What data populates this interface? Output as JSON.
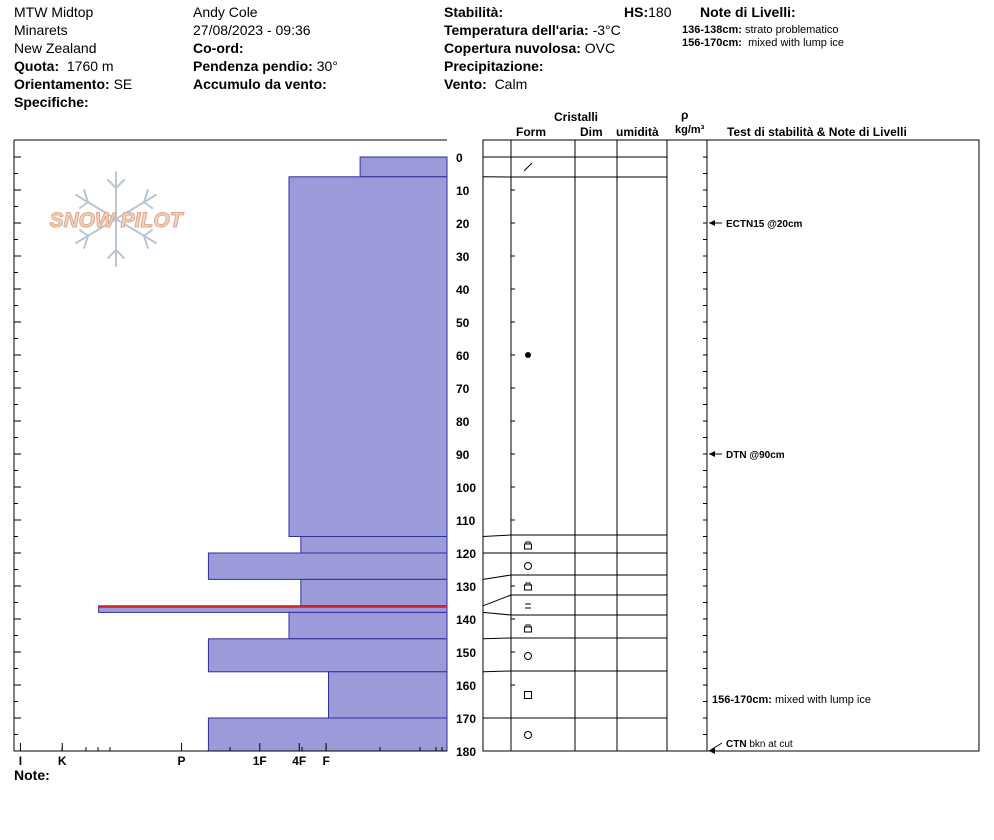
{
  "header": {
    "location": "MTW Midtop",
    "range": "Minarets",
    "country": "New Zealand",
    "elevation_label": "Quota:",
    "elevation_value": "1760 m",
    "aspect_label": "Orientamento:",
    "aspect_value": "SE",
    "specifics_label": "Specifiche:",
    "observer": "Andy Cole",
    "datetime": "27/08/2023 - 09:36",
    "coord_label": "Co-ord:",
    "slope_label": "Pendenza pendio:",
    "slope_value": "30°",
    "wind_loading_label": "Accumulo da vento:",
    "stability_label": "Stabilità:",
    "hs_label": "HS:",
    "hs_value": "180",
    "air_temp_label": "Temperatura dell'aria:",
    "air_temp_value": "-3°C",
    "sky_label": "Copertura nuvolosa:",
    "sky_value": "OVC",
    "precip_label": "Precipitazione:",
    "wind_label": "Vento:",
    "wind_value": "Calm",
    "layer_notes_title": "Note di Livelli:",
    "layer_notes": [
      {
        "range": "136-138cm:",
        "text": "strato problematico"
      },
      {
        "range": "156-170cm:",
        "text": "mixed with lump ice"
      }
    ]
  },
  "logo_text": "SNOW PILOT",
  "notes_label": "Note:",
  "columns": {
    "crystals": "Cristalli",
    "form": "Form",
    "size": "Dim",
    "moisture": "umidità",
    "rho": "ρ",
    "density_unit": "kg/m³",
    "tests": "Test di stabilità & Note di Livelli"
  },
  "chart_data": {
    "type": "snow-profile-hardness",
    "depth_axis": {
      "min": 0,
      "max": 180,
      "ticks": [
        0,
        10,
        20,
        30,
        40,
        50,
        60,
        70,
        80,
        90,
        100,
        110,
        120,
        130,
        140,
        150,
        160,
        170,
        180
      ],
      "unit": "cm"
    },
    "hardness_axis": {
      "labels": [
        "I",
        "K",
        "P",
        "1F",
        "4F",
        "F"
      ],
      "scale_values": [
        5.4,
        4.87,
        3.36,
        2.37,
        1.87,
        1.53
      ]
    },
    "colors": {
      "layer_fill": "#9b9bd9",
      "layer_stroke": "#2e2e9a",
      "problem_layer_line": "#cc2222"
    },
    "layers": [
      {
        "top": 0,
        "bottom": 6,
        "hardness": 1.1,
        "form": "slash"
      },
      {
        "top": 6,
        "bottom": 115,
        "hardness": 2.0,
        "form": "dot"
      },
      {
        "top": 115,
        "bottom": 120,
        "hardness": 1.85,
        "form": "lock"
      },
      {
        "top": 120,
        "bottom": 128,
        "hardness": 3.02,
        "form": "circle"
      },
      {
        "top": 128,
        "bottom": 136,
        "hardness": 1.85,
        "form": "lock"
      },
      {
        "top": 136,
        "bottom": 138,
        "hardness": 4.41,
        "form": "equals",
        "problem": true
      },
      {
        "top": 138,
        "bottom": 146,
        "hardness": 2.0,
        "form": "lock"
      },
      {
        "top": 146,
        "bottom": 156,
        "hardness": 3.02,
        "form": "circle"
      },
      {
        "top": 156,
        "bottom": 170,
        "hardness": 1.5,
        "form": "square"
      },
      {
        "top": 170,
        "bottom": 180,
        "hardness": 3.02,
        "form": "circle"
      }
    ],
    "tests": [
      {
        "depth": 20,
        "text": "ECTN15 @20cm"
      },
      {
        "depth": 90,
        "text": "DTN @90cm"
      },
      {
        "depth": 180,
        "code": "CTN",
        "text": "bkn at cut"
      }
    ],
    "layer_annotations": [
      {
        "depth": 166,
        "range": "156-170cm:",
        "text": "mixed with lump ice"
      }
    ]
  }
}
